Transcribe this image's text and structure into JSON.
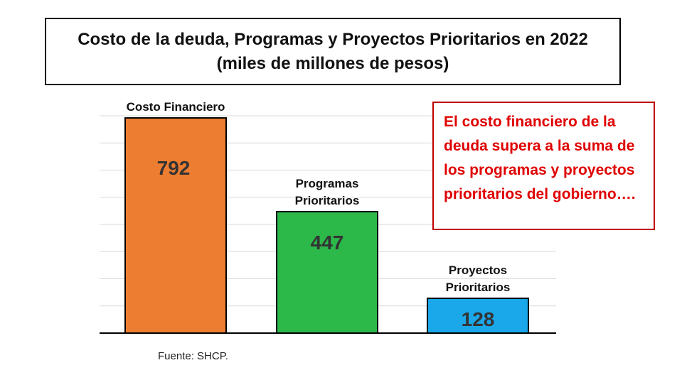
{
  "title": {
    "line1": "Costo de la deuda, Programas y Proyectos Prioritarios en 2022",
    "line2": "(miles de millones de pesos)"
  },
  "note": "El costo financiero de la deuda supera a la suma de los programas y proyectos prioritarios del gobierno….",
  "source": "Fuente: SHCP.",
  "colors": {
    "note_text": "#e00000",
    "note_border": "#c00000",
    "gridline": "#d9d9d9",
    "axis": "#000000"
  },
  "chart_data": {
    "type": "bar",
    "title": "Costo de la deuda, Programas y Proyectos Prioritarios en 2022 (miles de millones de pesos)",
    "xlabel": "",
    "ylabel": "",
    "ylim": [
      0,
      800
    ],
    "grid": true,
    "categories": [
      [
        "Costo Financiero"
      ],
      [
        "Programas",
        "Prioritarios"
      ],
      [
        "Proyectos",
        "Prioritarios"
      ]
    ],
    "values": [
      792,
      447,
      128
    ],
    "value_labels": [
      "792",
      "447",
      "128"
    ],
    "bar_colors": [
      "#ed7d31",
      "#2db84a",
      "#1aa8ea"
    ]
  }
}
